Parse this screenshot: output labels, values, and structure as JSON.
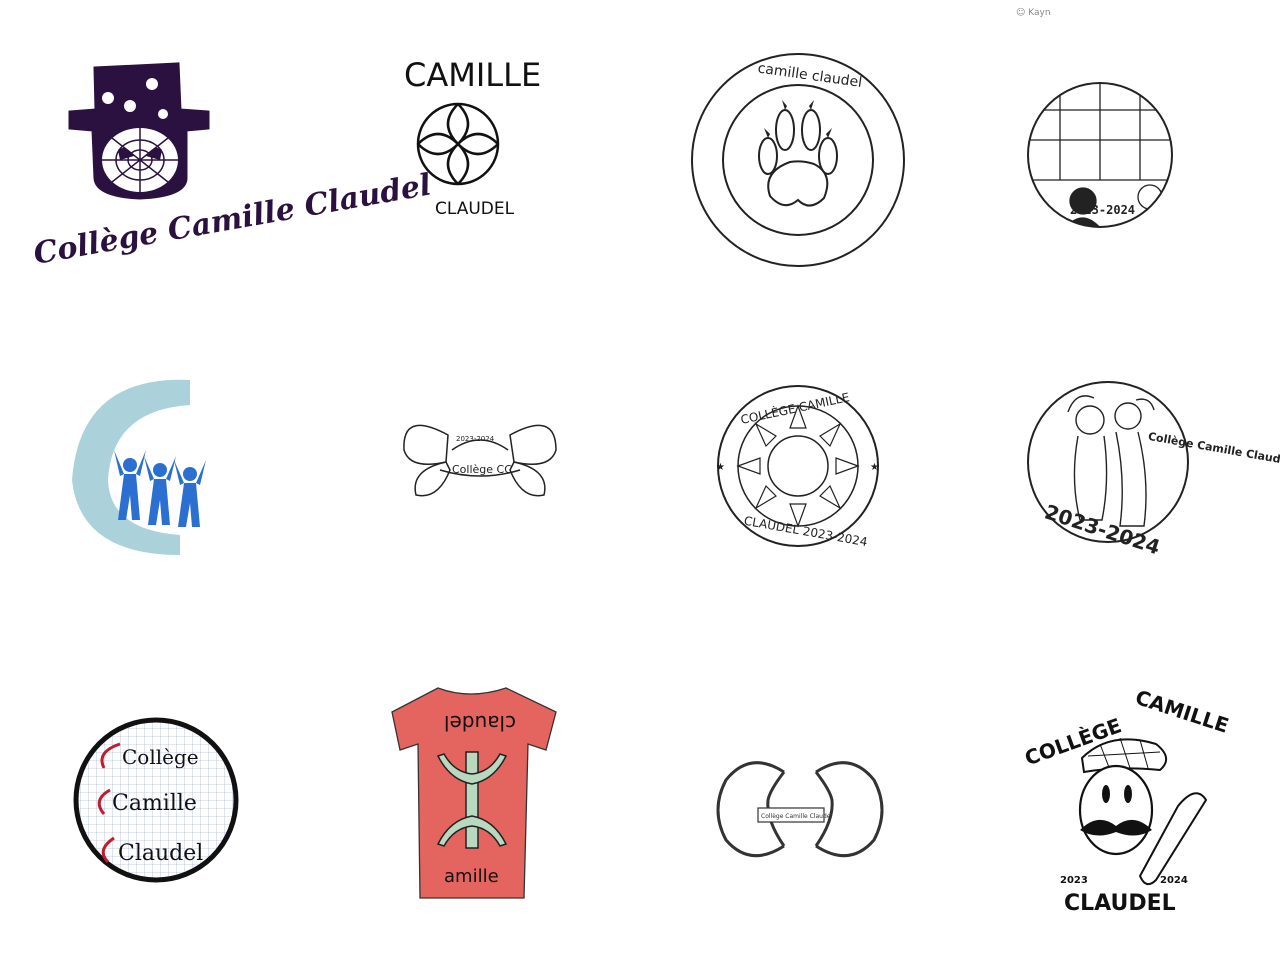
{
  "signature": {
    "name": "Kayn"
  },
  "logos": [
    {
      "id": "spider-hat",
      "text": "Collège Camille Claudel",
      "colors": {
        "ink": "#2a1140"
      }
    },
    {
      "id": "ball",
      "top": "CAMILLE",
      "bottom": "CLAUDEL"
    },
    {
      "id": "paw",
      "text": "camille claudel"
    },
    {
      "id": "school-scene",
      "year": "2023-2024"
    },
    {
      "id": "blue-c",
      "colors": {
        "wave": "#8fc3cf",
        "figures": "#2b6fd1"
      }
    },
    {
      "id": "butterflies",
      "year": "2023-2024",
      "text": "Collège CC"
    },
    {
      "id": "sun-seal",
      "top": "COLLÈGE   CAMILLE",
      "bottom": "CLAUDEL 2023-2024"
    },
    {
      "id": "two-women",
      "side": "Collège Camille Claudel",
      "year": "2023-2024"
    },
    {
      "id": "grid-circle",
      "lines": [
        "Collège",
        "Camille",
        "Claudel"
      ],
      "colors": {
        "accent": "#c01c2c"
      }
    },
    {
      "id": "red-tshirt",
      "top": "claudel",
      "bottom": "amille",
      "colors": {
        "shirt": "#e4655f",
        "symbol": "#b9d8c0"
      }
    },
    {
      "id": "double-c",
      "label": "Collège Camille Claudel"
    },
    {
      "id": "mustache-man",
      "top": "COLLÈGE",
      "top2": "CAMILLE",
      "year_left": "2023",
      "year_right": "2024",
      "bottom": "CLAUDEL"
    }
  ]
}
